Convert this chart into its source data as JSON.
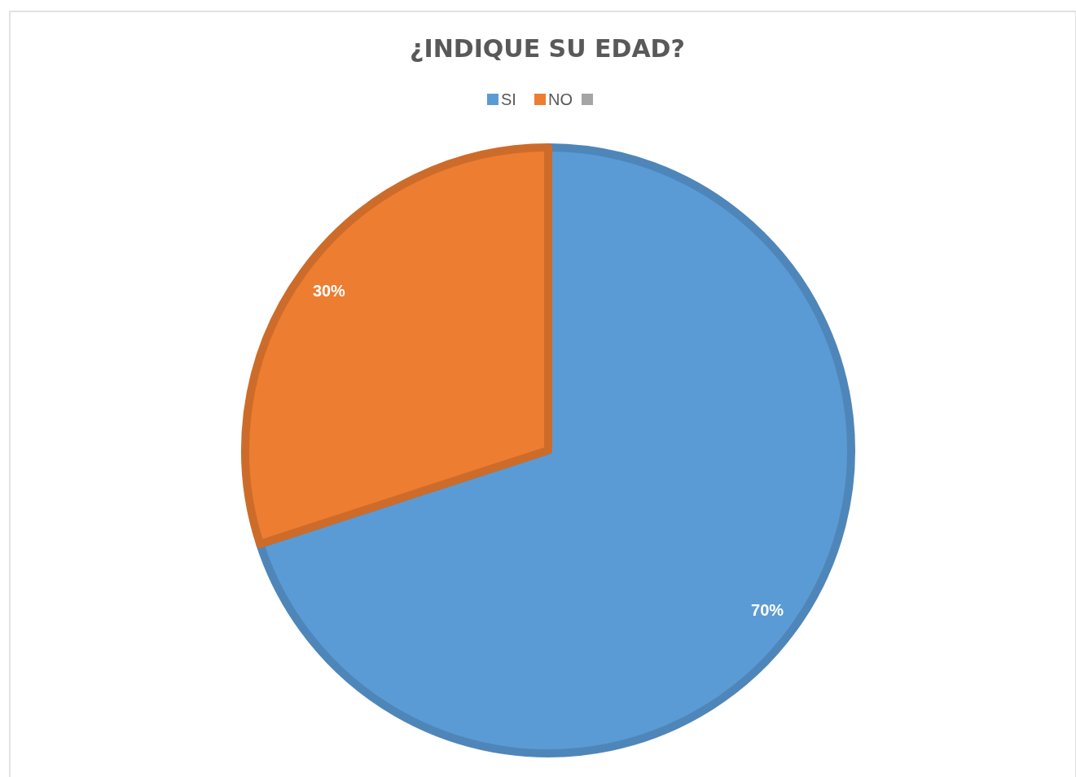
{
  "chart_data": {
    "type": "pie",
    "title": "¿INDIQUE SU EDAD?",
    "categories": [
      "SI",
      "NO",
      null
    ],
    "values": [
      70,
      30,
      0
    ],
    "colors": [
      "#5b9bd5",
      "#ed7d31",
      "#a5a5a5"
    ],
    "value_labels": [
      "70%",
      "30%",
      null
    ],
    "legend": "top"
  }
}
